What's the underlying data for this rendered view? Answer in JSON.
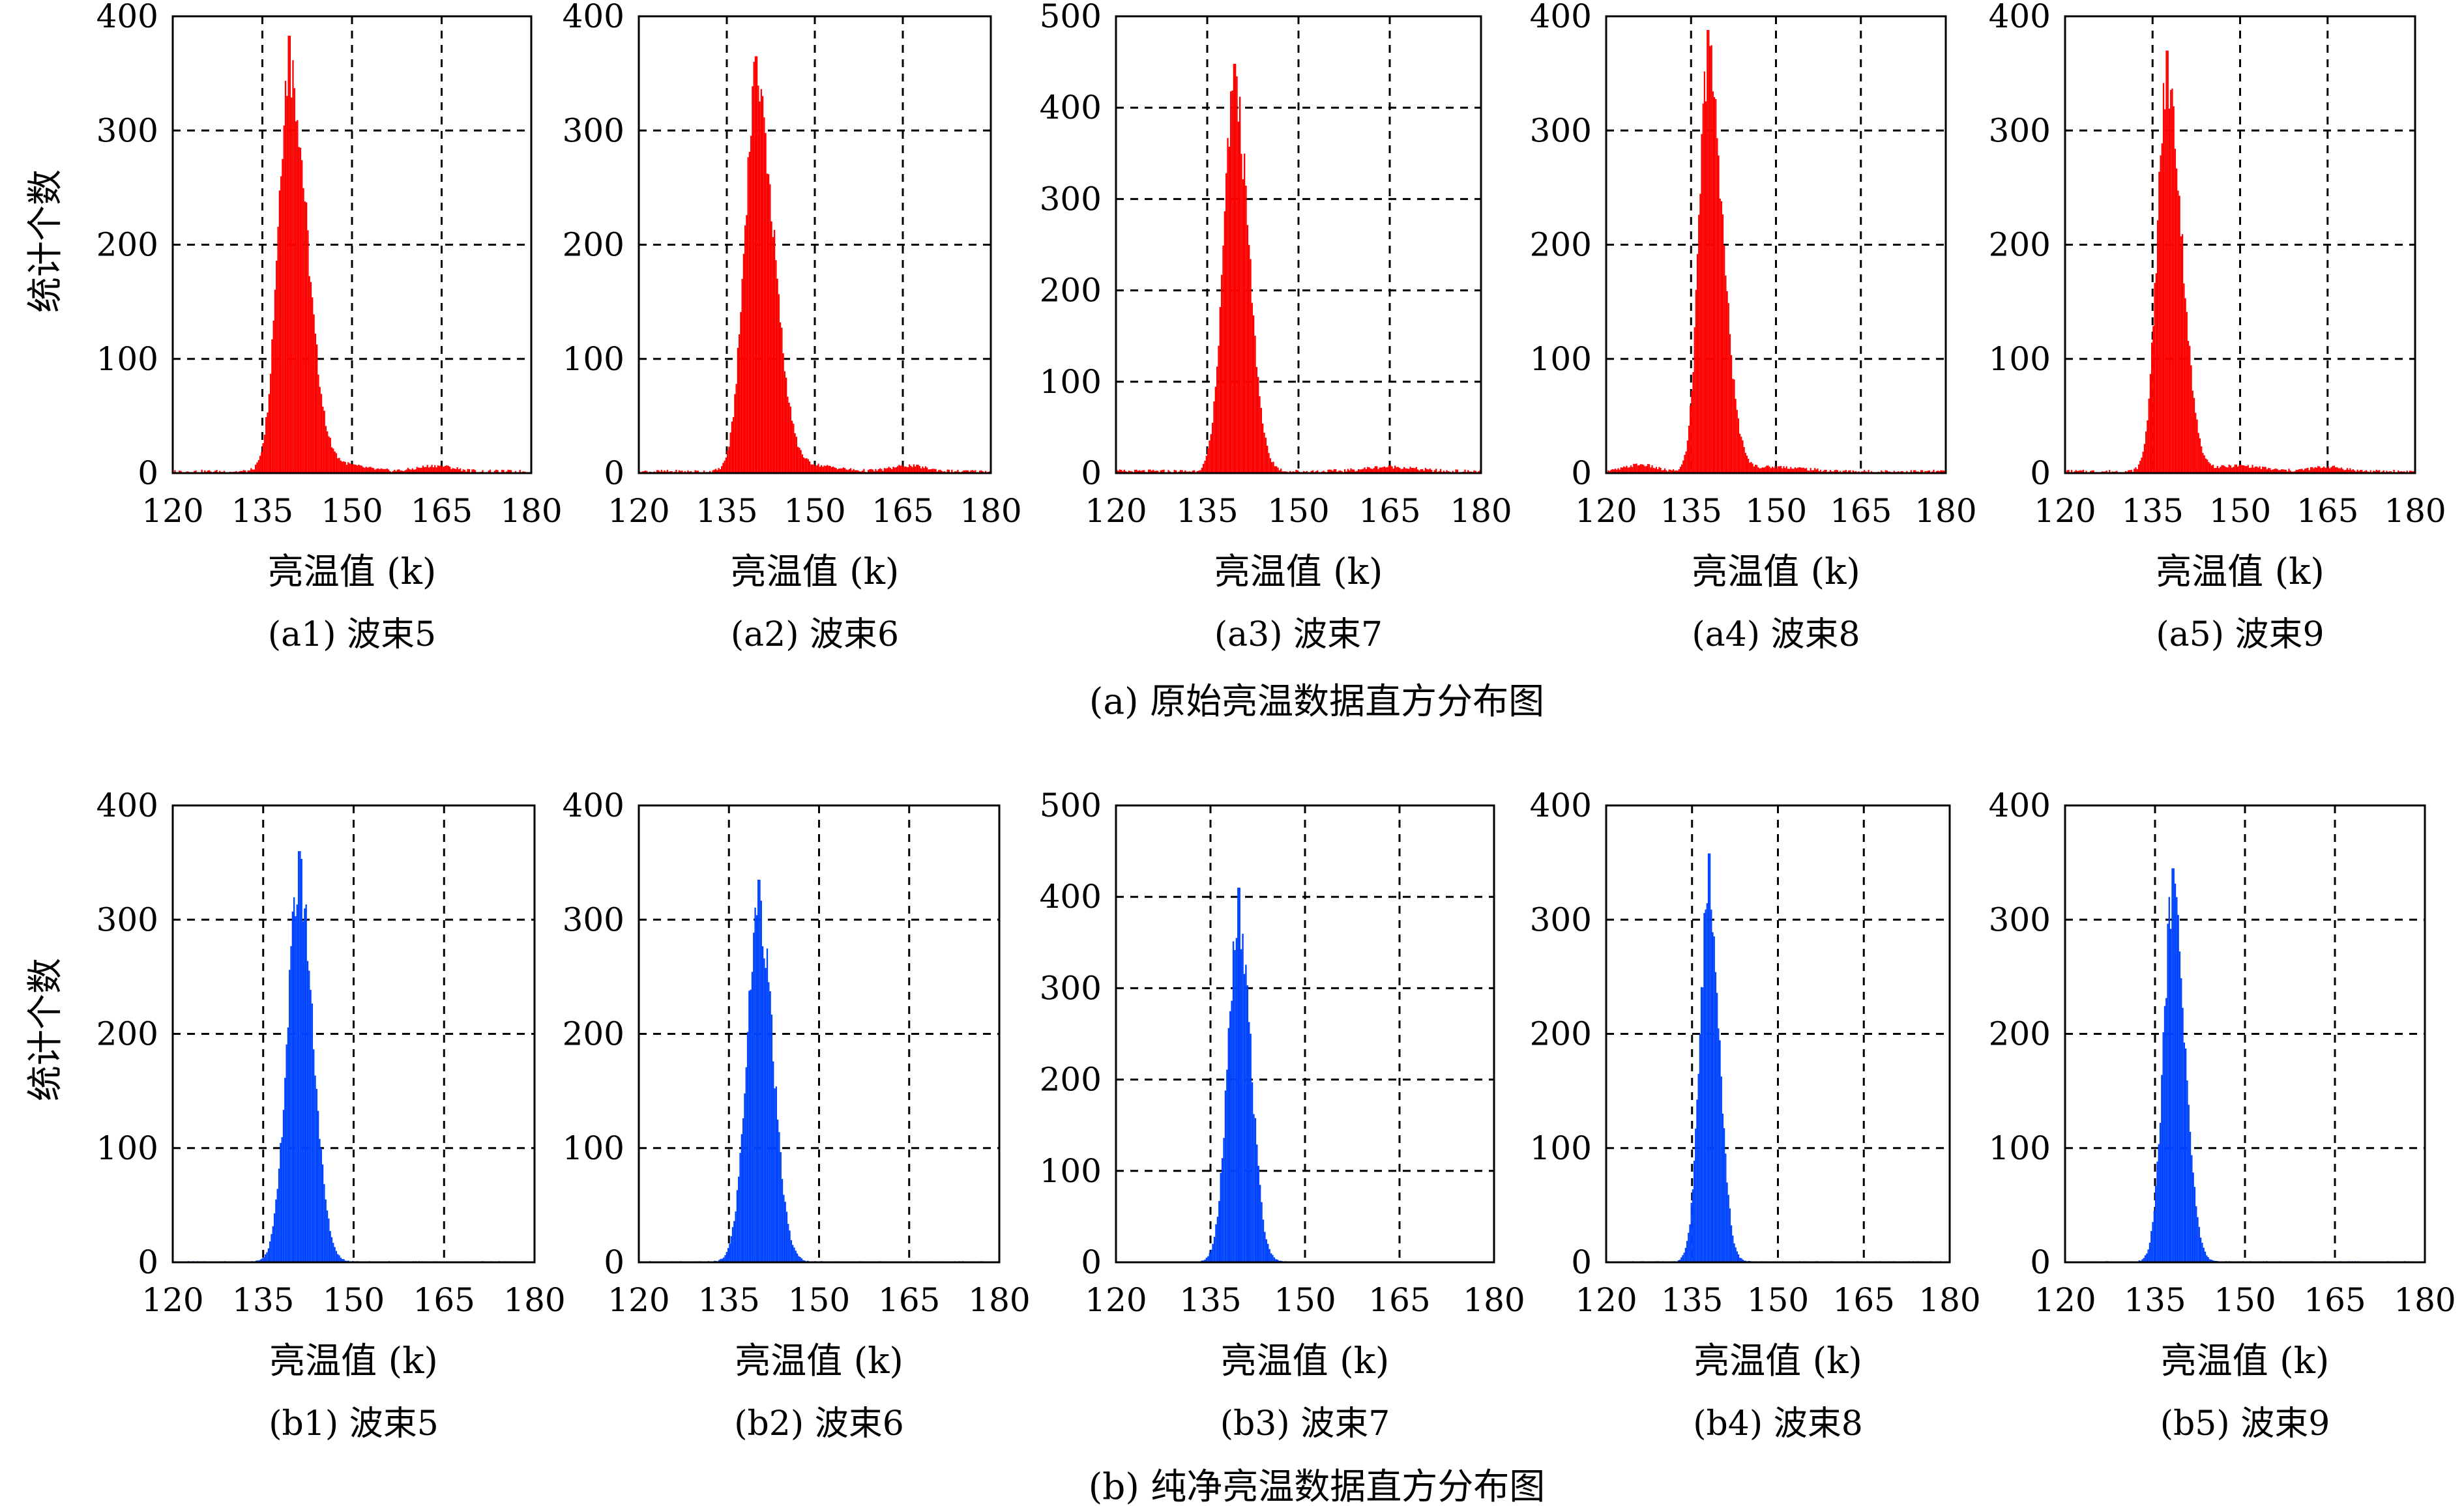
{
  "figure": {
    "shared_ylabel": "统计个数",
    "shared_xlabel": "亮温值 (k)",
    "xticks": [
      120,
      135,
      150,
      165,
      180
    ],
    "xlim": [
      120,
      180
    ],
    "grid": "dashed",
    "group_captions": [
      "(a)  原始亮温数据直方分布图",
      "(b)  纯净亮温数据直方分布图"
    ]
  },
  "chart_data": [
    {
      "type": "bar",
      "caption": "(a1) 波束5",
      "color": "#ff0000",
      "xlim": [
        120,
        180
      ],
      "ylim": [
        0,
        400
      ],
      "yticks": [
        0,
        100,
        200,
        300,
        400
      ],
      "peak": {
        "x": 139.5,
        "y": 383
      },
      "body_sigma": [
        1.9,
        2.9
      ],
      "tail": [
        {
          "x": 148,
          "y": 6,
          "w": 8
        },
        {
          "x": 164,
          "y": 5,
          "w": 6
        }
      ],
      "background": 3
    },
    {
      "type": "bar",
      "caption": "(a2) 波束6",
      "color": "#ff0000",
      "xlim": [
        120,
        180
      ],
      "ylim": [
        0,
        400
      ],
      "yticks": [
        0,
        100,
        200,
        300,
        400
      ],
      "peak": {
        "x": 140,
        "y": 365
      },
      "body_sigma": [
        2.0,
        3.0
      ],
      "tail": [
        {
          "x": 150,
          "y": 5,
          "w": 8
        },
        {
          "x": 166,
          "y": 5,
          "w": 6
        }
      ],
      "background": 3
    },
    {
      "type": "bar",
      "caption": "(a3) 波束7",
      "color": "#ff0000",
      "xlim": [
        120,
        180
      ],
      "ylim": [
        0,
        500
      ],
      "yticks": [
        0,
        100,
        200,
        300,
        400,
        500
      ],
      "peak": {
        "x": 139.5,
        "y": 448
      },
      "body_sigma": [
        1.8,
        2.3
      ],
      "tail": [
        {
          "x": 165,
          "y": 5,
          "w": 8
        }
      ],
      "background": 4
    },
    {
      "type": "bar",
      "caption": "(a4) 波束8",
      "color": "#ff0000",
      "xlim": [
        120,
        180
      ],
      "ylim": [
        0,
        400
      ],
      "yticks": [
        0,
        100,
        200,
        300,
        400
      ],
      "peak": {
        "x": 138,
        "y": 388
      },
      "body_sigma": [
        1.6,
        2.6
      ],
      "tail": [
        {
          "x": 126,
          "y": 6,
          "w": 5
        },
        {
          "x": 150,
          "y": 4,
          "w": 10
        }
      ],
      "background": 3
    },
    {
      "type": "bar",
      "caption": "(a5) 波束9",
      "color": "#ff0000",
      "xlim": [
        120,
        180
      ],
      "ylim": [
        0,
        400
      ],
      "yticks": [
        0,
        100,
        200,
        300,
        400
      ],
      "peak": {
        "x": 137.5,
        "y": 370
      },
      "body_sigma": [
        1.7,
        2.5
      ],
      "tail": [
        {
          "x": 150,
          "y": 5,
          "w": 8
        },
        {
          "x": 165,
          "y": 4,
          "w": 6
        }
      ],
      "background": 3
    },
    {
      "type": "bar",
      "caption": "(b1) 波束5",
      "color": "#0044ff",
      "xlim": [
        120,
        180
      ],
      "ylim": [
        0,
        400
      ],
      "yticks": [
        0,
        100,
        200,
        300,
        400
      ],
      "peak": {
        "x": 141,
        "y": 360
      },
      "body_sigma": [
        2.0,
        2.3
      ],
      "tail": [],
      "background": 1
    },
    {
      "type": "bar",
      "caption": "(b2) 波束6",
      "color": "#0044ff",
      "xlim": [
        120,
        180
      ],
      "ylim": [
        0,
        400
      ],
      "yticks": [
        0,
        100,
        200,
        300,
        400
      ],
      "peak": {
        "x": 140,
        "y": 335
      },
      "body_sigma": [
        2.0,
        2.3
      ],
      "tail": [],
      "background": 1
    },
    {
      "type": "bar",
      "caption": "(b3) 波束7",
      "color": "#0044ff",
      "xlim": [
        120,
        180
      ],
      "ylim": [
        0,
        500
      ],
      "yticks": [
        0,
        100,
        200,
        300,
        400,
        500
      ],
      "peak": {
        "x": 139.5,
        "y": 410
      },
      "body_sigma": [
        1.7,
        1.9
      ],
      "tail": [],
      "background": 1
    },
    {
      "type": "bar",
      "caption": "(b4) 波束8",
      "color": "#0044ff",
      "xlim": [
        120,
        180
      ],
      "ylim": [
        0,
        400
      ],
      "yticks": [
        0,
        100,
        200,
        300,
        400
      ],
      "peak": {
        "x": 138,
        "y": 358
      },
      "body_sigma": [
        1.6,
        1.8
      ],
      "tail": [],
      "background": 1
    },
    {
      "type": "bar",
      "caption": "(b5) 波束9",
      "color": "#0044ff",
      "xlim": [
        120,
        180
      ],
      "ylim": [
        0,
        400
      ],
      "yticks": [
        0,
        100,
        200,
        300,
        400
      ],
      "peak": {
        "x": 138,
        "y": 345
      },
      "body_sigma": [
        1.6,
        2.0
      ],
      "tail": [],
      "background": 1
    }
  ]
}
